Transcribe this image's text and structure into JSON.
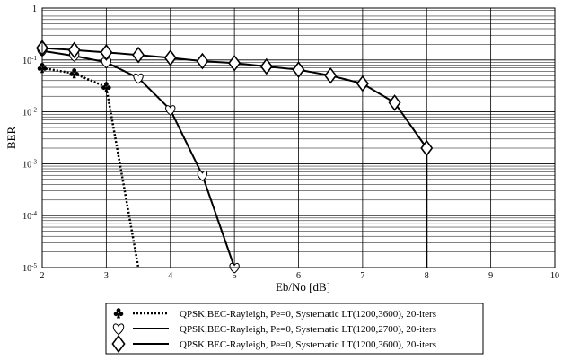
{
  "chart_data": {
    "type": "line",
    "xlabel": "Eb/No [dB]",
    "ylabel": "BER",
    "xlim": [
      2,
      10
    ],
    "ylim": [
      1e-05,
      1
    ],
    "yscale": "log",
    "grid": true,
    "x_ticks": [
      "2",
      "3",
      "4",
      "5",
      "6",
      "7",
      "8",
      "9",
      "10"
    ],
    "y_ticks": [
      {
        "base": "1",
        "exp": ""
      },
      {
        "base": "10",
        "exp": "-1"
      },
      {
        "base": "10",
        "exp": "-2"
      },
      {
        "base": "10",
        "exp": "-3"
      },
      {
        "base": "10",
        "exp": "-4"
      },
      {
        "base": "10",
        "exp": "-5"
      }
    ],
    "legend_position": "bottom",
    "series": [
      {
        "name": "QPSK,BEC-Rayleigh, Pe=0, Systematic LT(1200,3600), 20-iters",
        "marker": "club",
        "line": "dotted",
        "x": [
          2,
          2.5,
          3,
          3.5
        ],
        "y": [
          0.07,
          0.055,
          0.03,
          1e-05
        ]
      },
      {
        "name": "QPSK,BEC-Rayleigh, Pe=0, Systematic LT(1200,2700), 20-iters",
        "marker": "heart",
        "line": "solid",
        "x": [
          2,
          2.5,
          3,
          3.5,
          4,
          4.5,
          5
        ],
        "y": [
          0.15,
          0.12,
          0.09,
          0.045,
          0.011,
          0.0006,
          1e-05
        ]
      },
      {
        "name": "QPSK,BEC-Rayleigh, Pe=0, Systematic LT(1200,3600), 20-iters",
        "marker": "diamond",
        "line": "solid",
        "x": [
          2,
          2.5,
          3,
          3.5,
          4,
          4.5,
          5,
          5.5,
          6,
          6.5,
          7,
          7.5,
          8,
          8
        ],
        "y": [
          0.17,
          0.155,
          0.14,
          0.125,
          0.11,
          0.095,
          0.087,
          0.075,
          0.065,
          0.05,
          0.035,
          0.015,
          0.002,
          1e-05
        ]
      }
    ]
  }
}
